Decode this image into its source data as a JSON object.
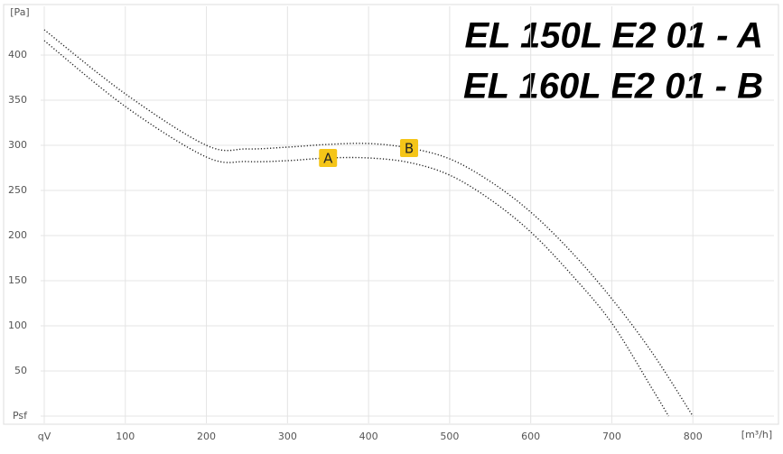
{
  "chart_data": {
    "type": "line",
    "title_lines": [
      "EL 150L E2 01 - A",
      "EL 160L E2 01 - B"
    ],
    "x_label": "[m³/h]",
    "y_label": "[Pa]",
    "x": [
      0,
      100,
      200,
      250,
      300,
      350,
      400,
      450,
      500,
      550,
      600,
      650,
      700,
      750,
      770,
      800
    ],
    "series": [
      {
        "name": "A",
        "color": "#222222",
        "values": [
          416,
          343,
          287,
          282,
          283,
          286,
          286,
          281,
          267,
          240,
          204,
          157,
          103,
          30,
          0,
          null
        ]
      },
      {
        "name": "B",
        "color": "#222222",
        "values": [
          428,
          357,
          300,
          296,
          298,
          301,
          302,
          297,
          285,
          260,
          226,
          182,
          130,
          70,
          null,
          0
        ]
      }
    ],
    "label_color": "#f5c518",
    "xlim": [
      0,
      900
    ],
    "ylim": [
      0,
      450
    ],
    "xticks": [
      {
        "value": 0,
        "label": "qV"
      },
      100,
      200,
      300,
      400,
      500,
      600,
      700,
      800
    ],
    "yticks": [
      {
        "value": 0,
        "label": "Psf"
      },
      50,
      100,
      150,
      200,
      250,
      300,
      350,
      400
    ],
    "grid": true
  }
}
